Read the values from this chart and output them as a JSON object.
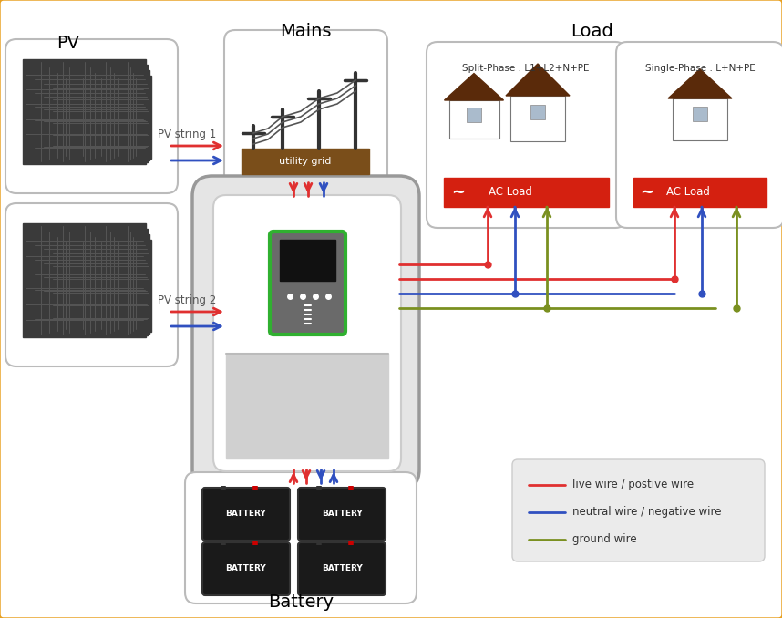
{
  "bg_color": "#ffffff",
  "border_color": "#e8a020",
  "red_wire": "#e03030",
  "blue_wire": "#3050c0",
  "green_wire": "#7a9020",
  "labels": {
    "pv": "PV",
    "mains": "Mains",
    "load": "Load",
    "battery": "Battery",
    "pv_string1": "PV string 1",
    "pv_string2": "PV string 2",
    "utility_grid": "utility grid",
    "split_phase": "Split-Phase : L1+L2+N+PE",
    "single_phase": "Single-Phase : L+N+PE",
    "ac_load": "AC Load",
    "live_wire": "live wire / postive wire",
    "neutral_wire": "neutral wire / negative wire",
    "ground_wire": "ground wire",
    "battery_label": "BATTERY"
  }
}
